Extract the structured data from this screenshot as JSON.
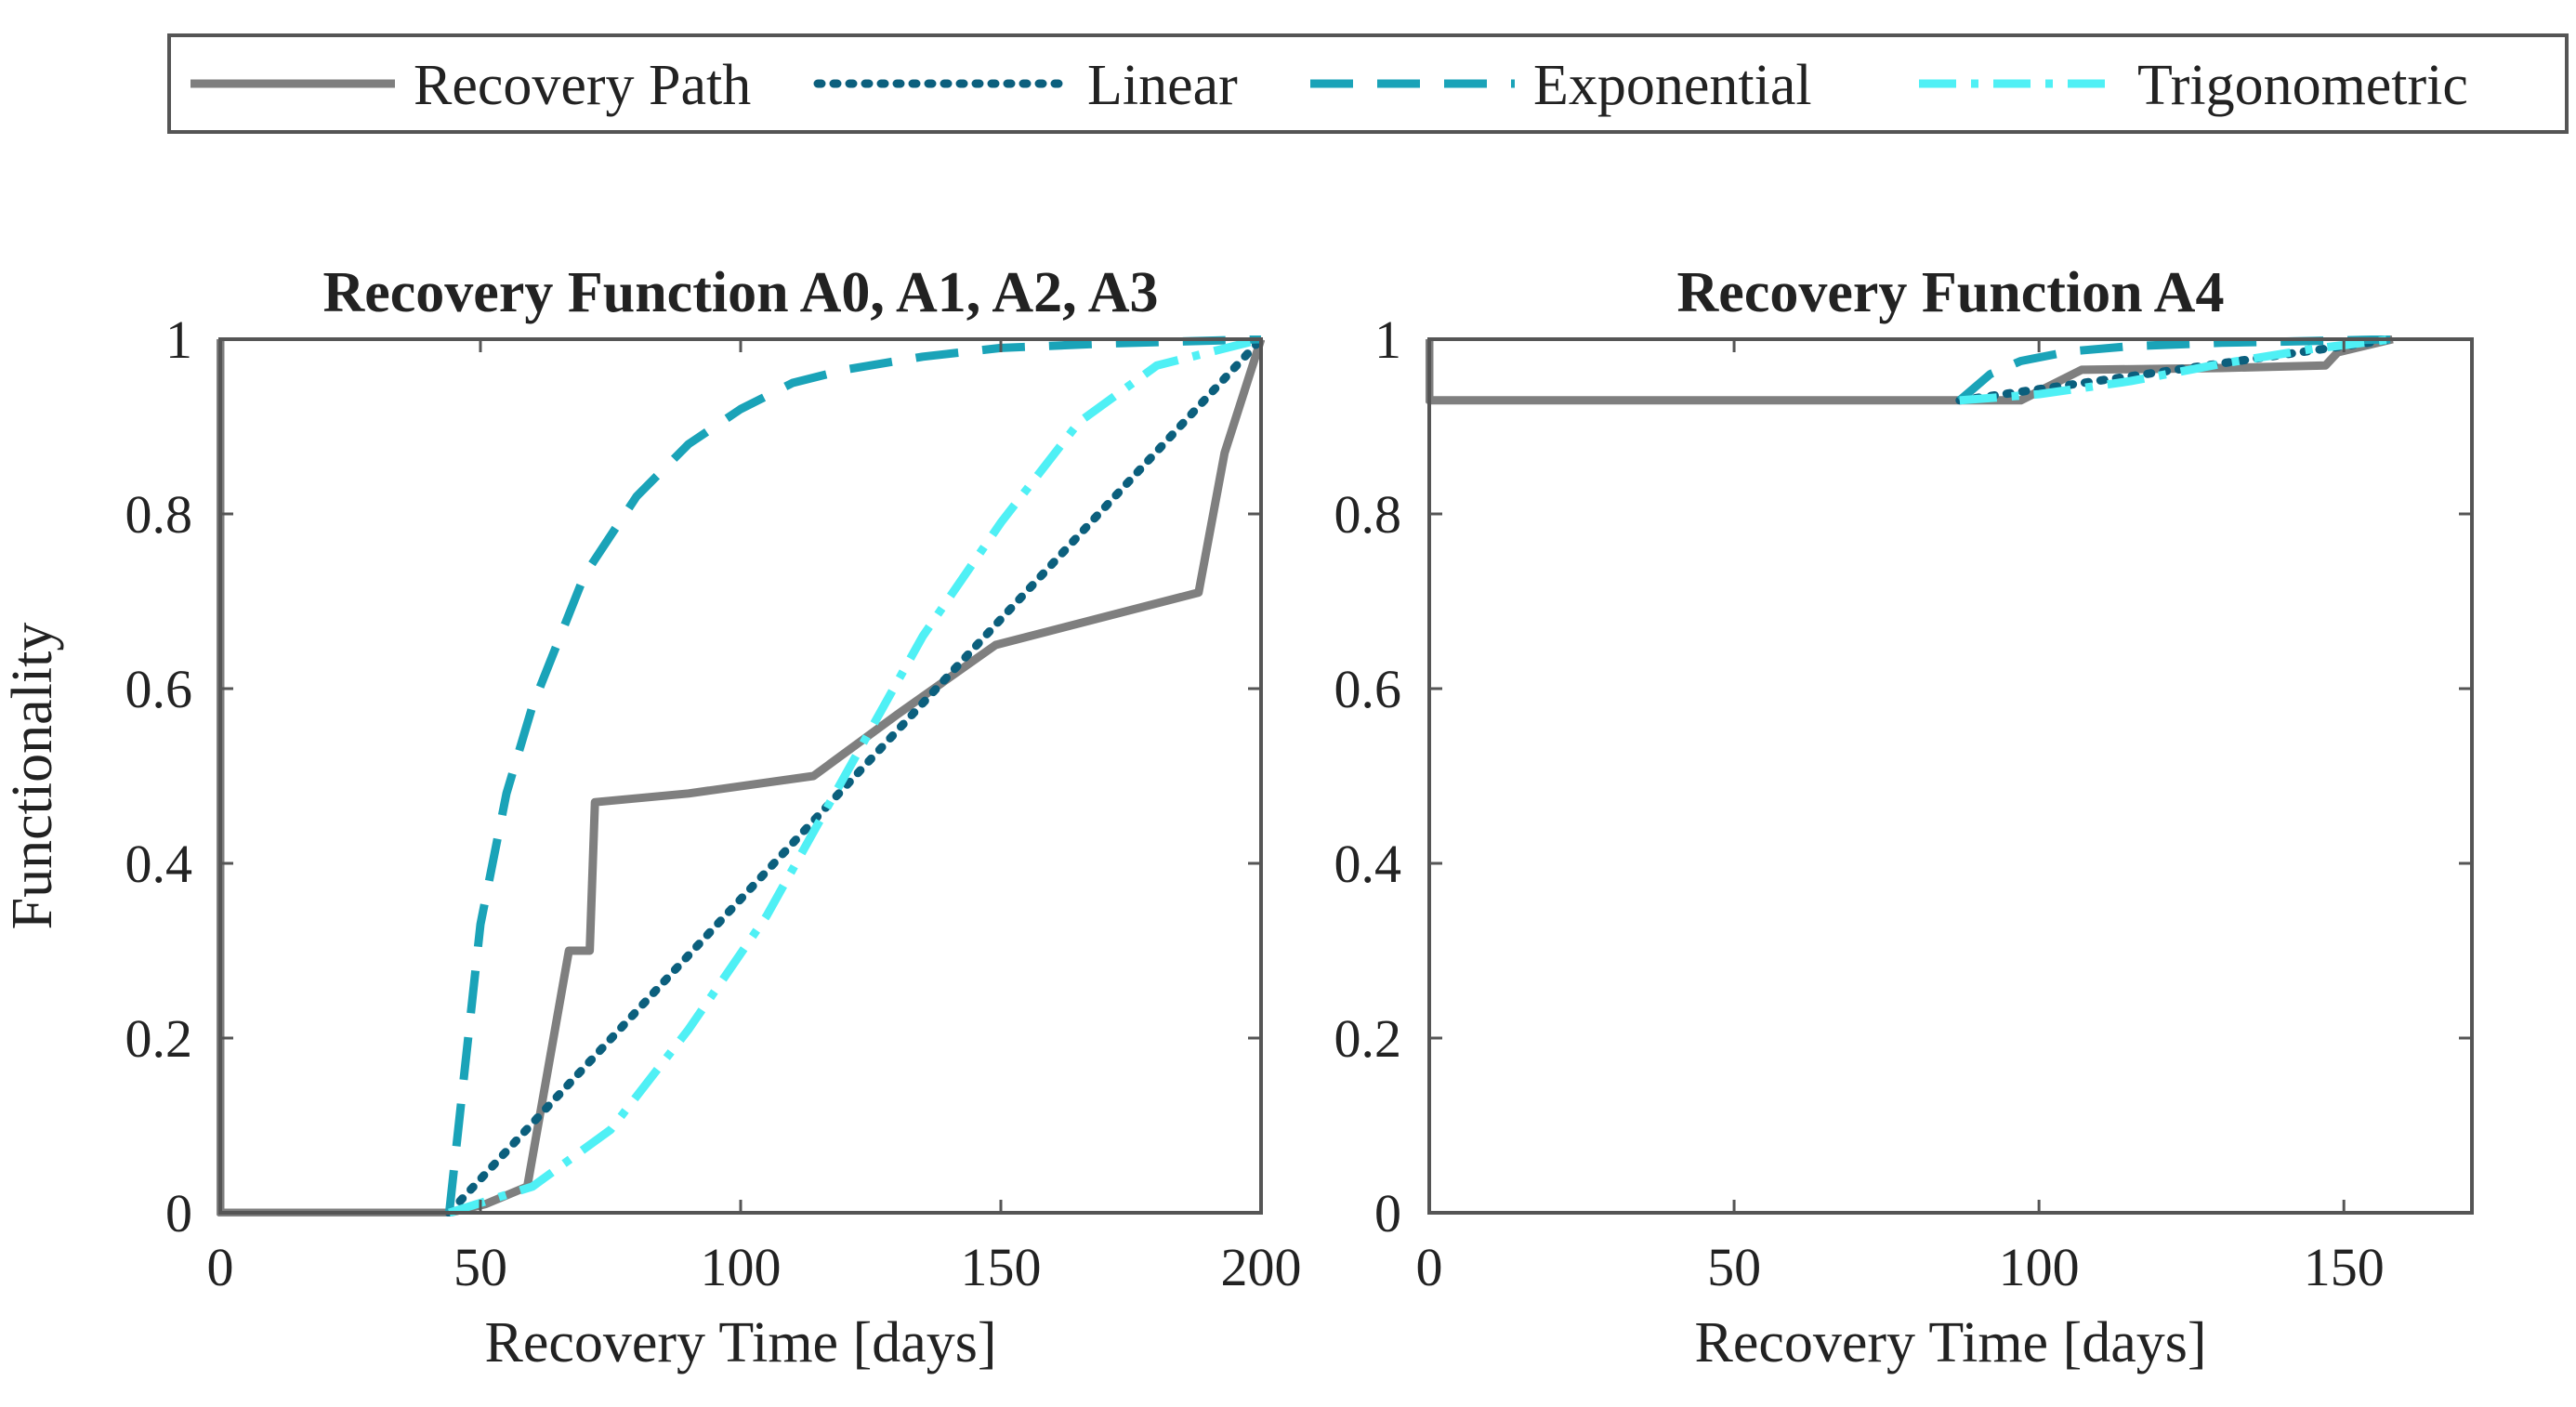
{
  "chart_data": [
    {
      "type": "line",
      "title": "Recovery Function A0, A1, A2, A3",
      "xlabel": "Recovery Time [days]",
      "ylabel": "Functionality",
      "xlim": [
        0,
        200
      ],
      "ylim": [
        0,
        1
      ],
      "xticks": [
        0,
        50,
        100,
        150,
        200
      ],
      "yticks": [
        0,
        0.2,
        0.4,
        0.6,
        0.8,
        1
      ],
      "xtick_labels": [
        "0",
        "50",
        "100",
        "150",
        "200"
      ],
      "ytick_labels": [
        "0",
        "0.2",
        "0.4",
        "0.6",
        "0.8",
        "1"
      ],
      "grid": false,
      "series": [
        {
          "name": "Recovery Path",
          "key": "recovery-path",
          "points": [
            [
              0,
              1
            ],
            [
              0,
              0
            ],
            [
              44,
              0
            ],
            [
              51,
              0.01
            ],
            [
              59,
              0.03
            ],
            [
              67,
              0.3
            ],
            [
              71,
              0.3
            ],
            [
              72,
              0.47
            ],
            [
              90,
              0.48
            ],
            [
              114,
              0.5
            ],
            [
              130,
              0.57
            ],
            [
              149,
              0.65
            ],
            [
              188,
              0.71
            ],
            [
              193,
              0.87
            ],
            [
              200,
              1
            ]
          ]
        },
        {
          "name": "Linear",
          "key": "linear",
          "points": [
            [
              44,
              0
            ],
            [
              200,
              1
            ]
          ]
        },
        {
          "name": "Exponential",
          "key": "exponential",
          "points": [
            [
              44,
              0
            ],
            [
              50,
              0.33
            ],
            [
              55,
              0.48
            ],
            [
              60,
              0.58
            ],
            [
              70,
              0.73
            ],
            [
              80,
              0.82
            ],
            [
              90,
              0.88
            ],
            [
              100,
              0.92
            ],
            [
              110,
              0.95
            ],
            [
              120,
              0.965
            ],
            [
              135,
              0.98
            ],
            [
              150,
              0.99
            ],
            [
              170,
              0.995
            ],
            [
              200,
              1
            ]
          ]
        },
        {
          "name": "Trigonometric",
          "key": "trigonometric",
          "points": [
            [
              44,
              0
            ],
            [
              60,
              0.03
            ],
            [
              75,
              0.095
            ],
            [
              90,
              0.21
            ],
            [
              105,
              0.34
            ],
            [
              120,
              0.5
            ],
            [
              135,
              0.66
            ],
            [
              150,
              0.79
            ],
            [
              165,
              0.905
            ],
            [
              180,
              0.97
            ],
            [
              200,
              1
            ]
          ]
        }
      ]
    },
    {
      "type": "line",
      "title": "Recovery Function A4",
      "xlabel": "Recovery Time [days]",
      "ylabel": "",
      "xlim": [
        0,
        171
      ],
      "ylim": [
        0,
        1
      ],
      "xticks": [
        0,
        50,
        100,
        150
      ],
      "yticks": [
        0,
        0.2,
        0.4,
        0.6,
        0.8,
        1
      ],
      "xtick_labels": [
        "0",
        "50",
        "100",
        "150"
      ],
      "ytick_labels": [
        "0",
        "0.2",
        "0.4",
        "0.6",
        "0.8",
        "1"
      ],
      "grid": false,
      "series": [
        {
          "name": "Recovery Path",
          "key": "recovery-path",
          "points": [
            [
              0,
              1
            ],
            [
              0,
              0.93
            ],
            [
              87,
              0.93
            ],
            [
              97,
              0.93
            ],
            [
              107,
              0.965
            ],
            [
              130,
              0.967
            ],
            [
              147,
              0.97
            ],
            [
              149,
              0.985
            ],
            [
              158,
              1
            ]
          ]
        },
        {
          "name": "Linear",
          "key": "linear",
          "points": [
            [
              87,
              0.93
            ],
            [
              158,
              1
            ]
          ]
        },
        {
          "name": "Exponential",
          "key": "exponential",
          "points": [
            [
              87,
              0.93
            ],
            [
              92,
              0.96
            ],
            [
              97,
              0.975
            ],
            [
              105,
              0.986
            ],
            [
              115,
              0.992
            ],
            [
              130,
              0.996
            ],
            [
              145,
              0.998
            ],
            [
              158,
              1
            ]
          ]
        },
        {
          "name": "Trigonometric",
          "key": "trigonometric",
          "points": [
            [
              87,
              0.93
            ],
            [
              100,
              0.937
            ],
            [
              115,
              0.952
            ],
            [
              130,
              0.972
            ],
            [
              145,
              0.989
            ],
            [
              158,
              1
            ]
          ]
        }
      ]
    }
  ],
  "legend": {
    "placement": "top",
    "items": [
      {
        "label": "Recovery Path",
        "key": "recovery-path"
      },
      {
        "label": "Linear",
        "key": "linear"
      },
      {
        "label": "Exponential",
        "key": "exponential"
      },
      {
        "label": "Trigonometric",
        "key": "trigonometric"
      }
    ]
  },
  "styles": {
    "recovery-path": {
      "color": "#7f7f7f",
      "dash": "solid"
    },
    "linear": {
      "color": "#0b5f7d",
      "dash": "dotted"
    },
    "exponential": {
      "color": "#1aa3b8",
      "dash": "dashed"
    },
    "trigonometric": {
      "color": "#4ff0f5",
      "dash": "dashdot"
    },
    "axis": "#555555",
    "text": "#222222"
  }
}
